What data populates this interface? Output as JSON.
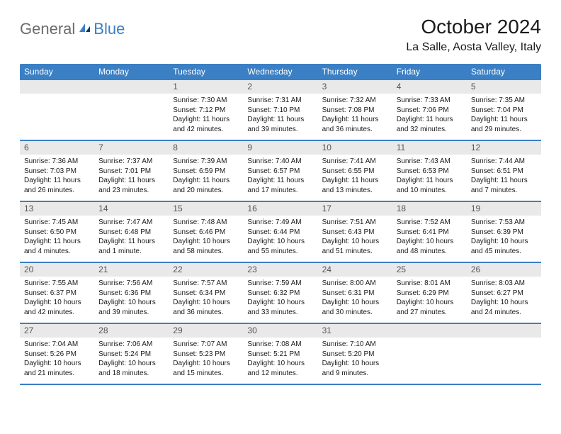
{
  "brand": {
    "word1": "General",
    "word2": "Blue"
  },
  "title": {
    "month_year": "October 2024",
    "location": "La Salle, Aosta Valley, Italy"
  },
  "colors": {
    "header_bg": "#3b7fc4",
    "header_text": "#ffffff",
    "daynum_bg": "#e9e9e9",
    "daynum_text": "#555555",
    "body_text": "#1a1a1a",
    "row_border": "#3b7fc4",
    "logo_gray": "#6b6b6b",
    "logo_blue": "#3b7fc4",
    "page_bg": "#ffffff"
  },
  "weekdays": [
    "Sunday",
    "Monday",
    "Tuesday",
    "Wednesday",
    "Thursday",
    "Friday",
    "Saturday"
  ],
  "grid": [
    [
      null,
      null,
      {
        "n": "1",
        "sr": "Sunrise: 7:30 AM",
        "ss": "Sunset: 7:12 PM",
        "dl": "Daylight: 11 hours and 42 minutes."
      },
      {
        "n": "2",
        "sr": "Sunrise: 7:31 AM",
        "ss": "Sunset: 7:10 PM",
        "dl": "Daylight: 11 hours and 39 minutes."
      },
      {
        "n": "3",
        "sr": "Sunrise: 7:32 AM",
        "ss": "Sunset: 7:08 PM",
        "dl": "Daylight: 11 hours and 36 minutes."
      },
      {
        "n": "4",
        "sr": "Sunrise: 7:33 AM",
        "ss": "Sunset: 7:06 PM",
        "dl": "Daylight: 11 hours and 32 minutes."
      },
      {
        "n": "5",
        "sr": "Sunrise: 7:35 AM",
        "ss": "Sunset: 7:04 PM",
        "dl": "Daylight: 11 hours and 29 minutes."
      }
    ],
    [
      {
        "n": "6",
        "sr": "Sunrise: 7:36 AM",
        "ss": "Sunset: 7:03 PM",
        "dl": "Daylight: 11 hours and 26 minutes."
      },
      {
        "n": "7",
        "sr": "Sunrise: 7:37 AM",
        "ss": "Sunset: 7:01 PM",
        "dl": "Daylight: 11 hours and 23 minutes."
      },
      {
        "n": "8",
        "sr": "Sunrise: 7:39 AM",
        "ss": "Sunset: 6:59 PM",
        "dl": "Daylight: 11 hours and 20 minutes."
      },
      {
        "n": "9",
        "sr": "Sunrise: 7:40 AM",
        "ss": "Sunset: 6:57 PM",
        "dl": "Daylight: 11 hours and 17 minutes."
      },
      {
        "n": "10",
        "sr": "Sunrise: 7:41 AM",
        "ss": "Sunset: 6:55 PM",
        "dl": "Daylight: 11 hours and 13 minutes."
      },
      {
        "n": "11",
        "sr": "Sunrise: 7:43 AM",
        "ss": "Sunset: 6:53 PM",
        "dl": "Daylight: 11 hours and 10 minutes."
      },
      {
        "n": "12",
        "sr": "Sunrise: 7:44 AM",
        "ss": "Sunset: 6:51 PM",
        "dl": "Daylight: 11 hours and 7 minutes."
      }
    ],
    [
      {
        "n": "13",
        "sr": "Sunrise: 7:45 AM",
        "ss": "Sunset: 6:50 PM",
        "dl": "Daylight: 11 hours and 4 minutes."
      },
      {
        "n": "14",
        "sr": "Sunrise: 7:47 AM",
        "ss": "Sunset: 6:48 PM",
        "dl": "Daylight: 11 hours and 1 minute."
      },
      {
        "n": "15",
        "sr": "Sunrise: 7:48 AM",
        "ss": "Sunset: 6:46 PM",
        "dl": "Daylight: 10 hours and 58 minutes."
      },
      {
        "n": "16",
        "sr": "Sunrise: 7:49 AM",
        "ss": "Sunset: 6:44 PM",
        "dl": "Daylight: 10 hours and 55 minutes."
      },
      {
        "n": "17",
        "sr": "Sunrise: 7:51 AM",
        "ss": "Sunset: 6:43 PM",
        "dl": "Daylight: 10 hours and 51 minutes."
      },
      {
        "n": "18",
        "sr": "Sunrise: 7:52 AM",
        "ss": "Sunset: 6:41 PM",
        "dl": "Daylight: 10 hours and 48 minutes."
      },
      {
        "n": "19",
        "sr": "Sunrise: 7:53 AM",
        "ss": "Sunset: 6:39 PM",
        "dl": "Daylight: 10 hours and 45 minutes."
      }
    ],
    [
      {
        "n": "20",
        "sr": "Sunrise: 7:55 AM",
        "ss": "Sunset: 6:37 PM",
        "dl": "Daylight: 10 hours and 42 minutes."
      },
      {
        "n": "21",
        "sr": "Sunrise: 7:56 AM",
        "ss": "Sunset: 6:36 PM",
        "dl": "Daylight: 10 hours and 39 minutes."
      },
      {
        "n": "22",
        "sr": "Sunrise: 7:57 AM",
        "ss": "Sunset: 6:34 PM",
        "dl": "Daylight: 10 hours and 36 minutes."
      },
      {
        "n": "23",
        "sr": "Sunrise: 7:59 AM",
        "ss": "Sunset: 6:32 PM",
        "dl": "Daylight: 10 hours and 33 minutes."
      },
      {
        "n": "24",
        "sr": "Sunrise: 8:00 AM",
        "ss": "Sunset: 6:31 PM",
        "dl": "Daylight: 10 hours and 30 minutes."
      },
      {
        "n": "25",
        "sr": "Sunrise: 8:01 AM",
        "ss": "Sunset: 6:29 PM",
        "dl": "Daylight: 10 hours and 27 minutes."
      },
      {
        "n": "26",
        "sr": "Sunrise: 8:03 AM",
        "ss": "Sunset: 6:27 PM",
        "dl": "Daylight: 10 hours and 24 minutes."
      }
    ],
    [
      {
        "n": "27",
        "sr": "Sunrise: 7:04 AM",
        "ss": "Sunset: 5:26 PM",
        "dl": "Daylight: 10 hours and 21 minutes."
      },
      {
        "n": "28",
        "sr": "Sunrise: 7:06 AM",
        "ss": "Sunset: 5:24 PM",
        "dl": "Daylight: 10 hours and 18 minutes."
      },
      {
        "n": "29",
        "sr": "Sunrise: 7:07 AM",
        "ss": "Sunset: 5:23 PM",
        "dl": "Daylight: 10 hours and 15 minutes."
      },
      {
        "n": "30",
        "sr": "Sunrise: 7:08 AM",
        "ss": "Sunset: 5:21 PM",
        "dl": "Daylight: 10 hours and 12 minutes."
      },
      {
        "n": "31",
        "sr": "Sunrise: 7:10 AM",
        "ss": "Sunset: 5:20 PM",
        "dl": "Daylight: 10 hours and 9 minutes."
      },
      null,
      null
    ]
  ]
}
